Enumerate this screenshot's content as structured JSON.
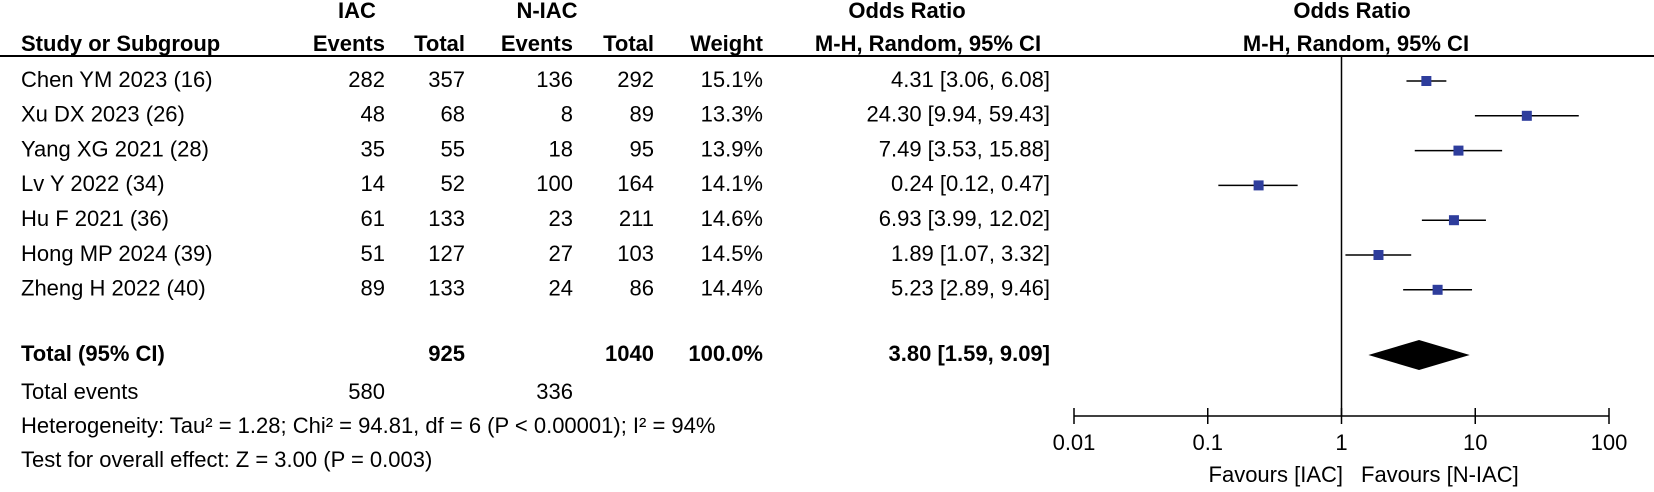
{
  "chart_data": {
    "type": "forest",
    "headers": {
      "group1": "IAC",
      "group2": "N-IAC",
      "odds_ratio_table": "Odds Ratio",
      "odds_ratio_plot": "Odds Ratio",
      "study": "Study or Subgroup",
      "events1": "Events",
      "total1": "Total",
      "events2": "Events",
      "total2": "Total",
      "weight": "Weight",
      "method_table": "M-H, Random, 95% CI",
      "method_plot": "M-H, Random, 95% CI"
    },
    "studies": [
      {
        "name": "Chen YM 2023 (16)",
        "events1": 282,
        "total1": 357,
        "events2": 136,
        "total2": 292,
        "weight": "15.1%",
        "or": 4.31,
        "lower": 3.06,
        "upper": 6.08,
        "ci_label": "4.31 [3.06, 6.08]"
      },
      {
        "name": "Xu DX 2023 (26)",
        "events1": 48,
        "total1": 68,
        "events2": 8,
        "total2": 89,
        "weight": "13.3%",
        "or": 24.3,
        "lower": 9.94,
        "upper": 59.43,
        "ci_label": "24.30 [9.94, 59.43]"
      },
      {
        "name": "Yang XG 2021 (28)",
        "events1": 35,
        "total1": 55,
        "events2": 18,
        "total2": 95,
        "weight": "13.9%",
        "or": 7.49,
        "lower": 3.53,
        "upper": 15.88,
        "ci_label": "7.49 [3.53, 15.88]"
      },
      {
        "name": "Lv Y 2022 (34)",
        "events1": 14,
        "total1": 52,
        "events2": 100,
        "total2": 164,
        "weight": "14.1%",
        "or": 0.24,
        "lower": 0.12,
        "upper": 0.47,
        "ci_label": "0.24 [0.12, 0.47]"
      },
      {
        "name": "Hu F 2021 (36)",
        "events1": 61,
        "total1": 133,
        "events2": 23,
        "total2": 211,
        "weight": "14.6%",
        "or": 6.93,
        "lower": 3.99,
        "upper": 12.02,
        "ci_label": "6.93 [3.99, 12.02]"
      },
      {
        "name": "Hong MP 2024 (39)",
        "events1": 51,
        "total1": 127,
        "events2": 27,
        "total2": 103,
        "weight": "14.5%",
        "or": 1.89,
        "lower": 1.07,
        "upper": 3.32,
        "ci_label": "1.89 [1.07, 3.32]"
      },
      {
        "name": "Zheng H 2022 (40)",
        "events1": 89,
        "total1": 133,
        "events2": 24,
        "total2": 86,
        "weight": "14.4%",
        "or": 5.23,
        "lower": 2.89,
        "upper": 9.46,
        "ci_label": "5.23 [2.89, 9.46]"
      }
    ],
    "total": {
      "name": "Total (95% CI)",
      "total1": 925,
      "total2": 1040,
      "weight": "100.0%",
      "or": 3.8,
      "lower": 1.59,
      "upper": 9.09,
      "ci_label": "3.80 [1.59, 9.09]"
    },
    "total_events": {
      "name": "Total events",
      "events1": 580,
      "events2": 336
    },
    "heterogeneity": "Heterogeneity: Tau² = 1.28; Chi² = 94.81, df = 6 (P < 0.00001); I² = 94%",
    "overall_effect": "Test for overall effect: Z = 3.00 (P = 0.003)",
    "xscale": "log",
    "xlim": [
      0.01,
      100
    ],
    "xticks": [
      0.01,
      0.1,
      1,
      10,
      100
    ],
    "reference_line": 1,
    "favours_left": "Favours [IAC]",
    "favours_right": "Favours [N-IAC]",
    "marker_color": "#2e3d9c",
    "diamond_color": "#000000"
  }
}
